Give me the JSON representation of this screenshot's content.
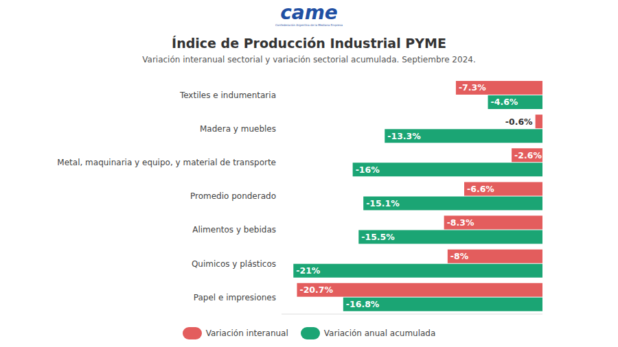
{
  "chart_data": {
    "type": "bar",
    "orientation": "horizontal",
    "logo": "came",
    "logo_subtext": "Confederación Argentina de la Mediana Empresa",
    "title": "Índice de Producción Industrial PYME",
    "subtitle": "Variación interanual sectorial y variación sectorial acumulada. Septiembre 2024.",
    "categories": [
      "Textiles e indumentaria",
      "Madera y muebles",
      "Metal, maquinaria y equipo, y material de transporte",
      "Promedio ponderado",
      "Alimentos y bebidas",
      "Quimicos y plásticos",
      "Papel e impresiones"
    ],
    "series": [
      {
        "name": "Variación interanual",
        "color": "#e35d5d",
        "values": [
          -7.3,
          -0.6,
          -2.6,
          -6.6,
          -8.3,
          -8,
          -20.7
        ],
        "value_labels": [
          "-7.3%",
          "-0.6%",
          "-2.6%",
          "-6.6%",
          "-8.3%",
          "-8%",
          "-20.7%"
        ]
      },
      {
        "name": "Variación anual acumulada",
        "color": "#1ba574",
        "values": [
          -4.6,
          -13.3,
          -16,
          -15.1,
          -15.5,
          -21,
          -16.8
        ],
        "value_labels": [
          "-4.6%",
          "-13.3%",
          "-16%",
          "-15.1%",
          "-15.5%",
          "-21%",
          "-16.8%"
        ]
      }
    ],
    "xlim": [
      -22,
      0
    ],
    "tick_labels": "y",
    "data_labels": true,
    "grid": false,
    "legend": "bottom"
  }
}
